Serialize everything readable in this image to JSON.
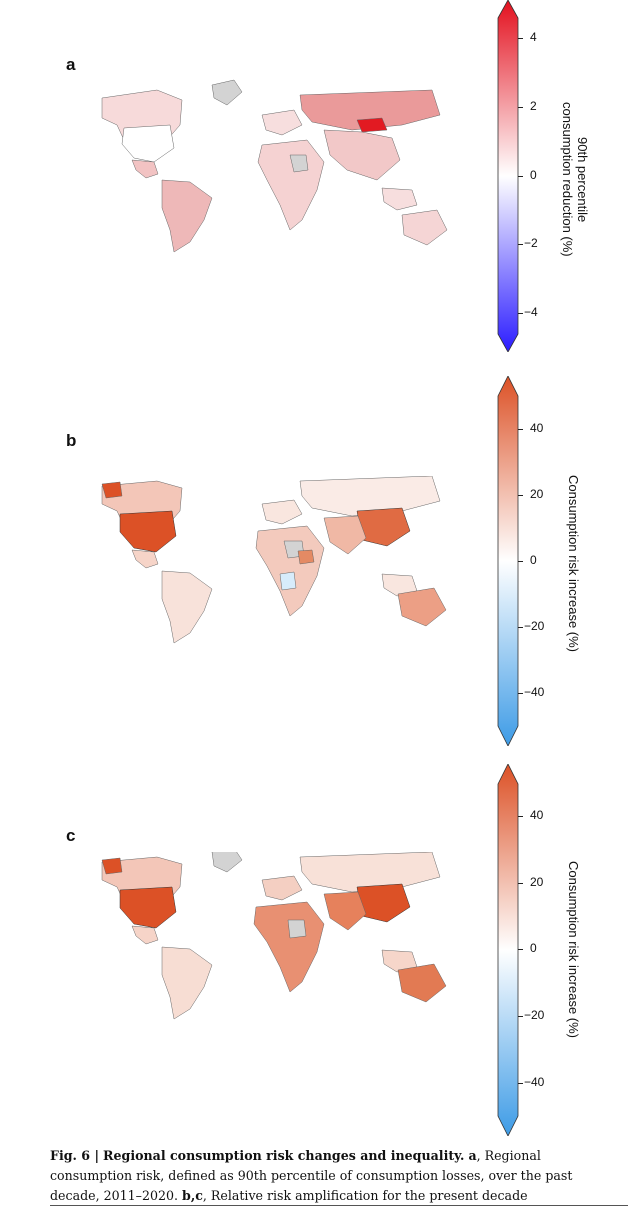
{
  "panels": [
    {
      "label": "a",
      "colorbar_title_lines": [
        "90th percentile",
        "consumption reduction (%)"
      ],
      "ticks": [
        "4",
        "2",
        "0",
        "−2",
        "−4"
      ],
      "tick_values": [
        4,
        2,
        0,
        -2,
        -4
      ],
      "range": [
        -5,
        5
      ],
      "colors": {
        "low": "#2b1cff",
        "mid": "#ffffff",
        "high": "#e3101e"
      }
    },
    {
      "label": "b",
      "colorbar_title_lines": [
        "Consumption risk increase (%)"
      ],
      "ticks": [
        "40",
        "20",
        "0",
        "−20",
        "−40"
      ],
      "tick_values": [
        40,
        20,
        0,
        -20,
        -40
      ],
      "range": [
        -50,
        50
      ],
      "colors": {
        "low": "#3d9be6",
        "mid": "#ffffff",
        "high": "#dc5126"
      }
    },
    {
      "label": "c",
      "colorbar_title_lines": [
        "Consumption risk increase (%)"
      ],
      "ticks": [
        "40",
        "20",
        "0",
        "−20",
        "−40"
      ],
      "tick_values": [
        40,
        20,
        0,
        -20,
        -40
      ],
      "range": [
        -50,
        50
      ],
      "colors": {
        "low": "#3d9be6",
        "mid": "#ffffff",
        "high": "#dc5126"
      }
    }
  ],
  "caption": {
    "fig": "Fig. 6 |",
    "title": "Regional consumption risk changes and inequality.",
    "part_a_label": "a",
    "part_a_text": ", Regional consumption risk, defined as 90th percentile of consumption losses, over the past decade, 2011–2020.",
    "part_bc_label": "b,c",
    "part_bc_text": ", Relative risk amplification for the present decade"
  }
}
